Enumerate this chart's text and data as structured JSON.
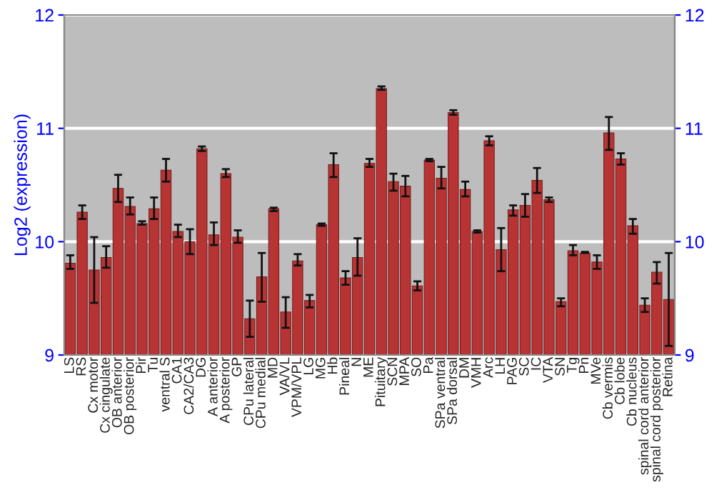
{
  "chart_data": {
    "type": "bar",
    "ylabel": "Log2 (expression)",
    "categories": [
      "LS",
      "RS",
      "Cx motor",
      "Cx cingulate",
      "OB anterior",
      "OB posterior",
      "Pir",
      "Tu",
      "ventral S",
      "CA1",
      "CA2/CA3",
      "DG",
      "A anterior",
      "A posterior",
      "GP",
      "CPu lateral",
      "CPu medial",
      "MD",
      "VA/VL",
      "VPM/VPL",
      "LG",
      "MG",
      "Hb",
      "Pineal",
      "N",
      "ME",
      "Pituitary",
      "SCN",
      "MPA",
      "SO",
      "Pa",
      "SPa ventral",
      "SPa dorsal",
      "DM",
      "VMH",
      "Arc",
      "LH",
      "PAG",
      "SC",
      "IC",
      "VTA",
      "SN",
      "Tg",
      "Pn",
      "MVe",
      "Cb vermis",
      "Cb lobe",
      "Cb nucleus",
      "spinal cord anterior",
      "spinal cord posterior",
      "Retina"
    ],
    "series": [
      {
        "color": "#b83434",
        "values": [
          9.81,
          10.26,
          9.75,
          9.86,
          10.47,
          10.31,
          10.16,
          10.29,
          10.63,
          10.09,
          10.0,
          10.82,
          10.06,
          10.6,
          10.04,
          9.32,
          9.69,
          10.29,
          9.38,
          9.83,
          9.48,
          10.15,
          10.68,
          9.68,
          9.86,
          10.69,
          11.35,
          10.53,
          10.49,
          9.61,
          10.72,
          10.56,
          11.14,
          10.46,
          10.09,
          10.89,
          9.93,
          10.28,
          10.32,
          10.54,
          10.37,
          9.47,
          9.92,
          9.9,
          9.82,
          10.96,
          10.73,
          10.14,
          9.44,
          9.73,
          9.49
        ],
        "errors": [
          [
            9.76,
            9.88
          ],
          [
            10.2,
            10.32
          ],
          [
            9.46,
            10.04
          ],
          [
            9.77,
            9.96
          ],
          [
            10.35,
            10.59
          ],
          [
            10.24,
            10.39
          ],
          [
            10.15,
            10.18
          ],
          [
            10.2,
            10.39
          ],
          [
            10.53,
            10.73
          ],
          [
            10.04,
            10.15
          ],
          [
            9.89,
            10.11
          ],
          [
            10.8,
            10.84
          ],
          [
            9.97,
            10.17
          ],
          [
            10.57,
            10.64
          ],
          [
            9.99,
            10.1
          ],
          [
            9.16,
            9.48
          ],
          [
            9.47,
            9.9
          ],
          [
            10.27,
            10.3
          ],
          [
            9.24,
            9.51
          ],
          [
            9.79,
            9.89
          ],
          [
            9.42,
            9.53
          ],
          [
            10.14,
            10.16
          ],
          [
            10.57,
            10.78
          ],
          [
            9.62,
            9.74
          ],
          [
            9.7,
            10.03
          ],
          [
            10.66,
            10.73
          ],
          [
            11.34,
            11.37
          ],
          [
            10.45,
            10.6
          ],
          [
            10.4,
            10.58
          ],
          [
            9.57,
            9.65
          ],
          [
            10.71,
            10.73
          ],
          [
            10.47,
            10.66
          ],
          [
            11.12,
            11.16
          ],
          [
            10.4,
            10.53
          ],
          [
            10.08,
            10.1
          ],
          [
            10.85,
            10.93
          ],
          [
            9.74,
            10.12
          ],
          [
            10.23,
            10.32
          ],
          [
            10.22,
            10.42
          ],
          [
            10.43,
            10.65
          ],
          [
            10.35,
            10.39
          ],
          [
            9.43,
            9.5
          ],
          [
            9.88,
            9.97
          ],
          [
            9.9,
            9.91
          ],
          [
            9.76,
            9.88
          ],
          [
            10.81,
            11.1
          ],
          [
            10.68,
            10.78
          ],
          [
            10.07,
            10.2
          ],
          [
            9.38,
            9.5
          ],
          [
            9.63,
            9.82
          ],
          [
            9.08,
            9.9
          ]
        ]
      }
    ],
    "ylim": [
      9,
      12
    ],
    "yticks": [
      9,
      10,
      11,
      12
    ],
    "y2lim": [
      9,
      12
    ],
    "y2ticks": [
      9,
      10,
      11,
      12
    ],
    "grid": "y"
  }
}
